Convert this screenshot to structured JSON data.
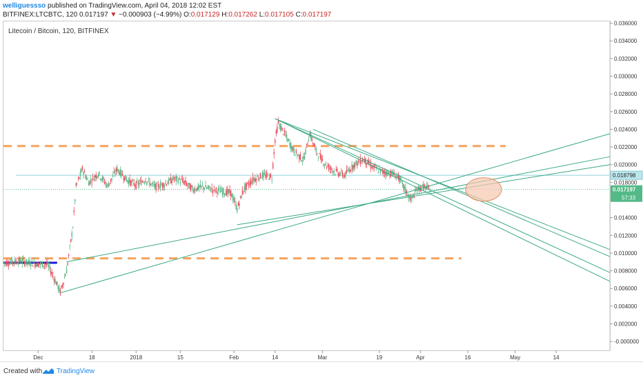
{
  "header": {
    "author": "welliguessso",
    "published": " published on TradingView.com, April 04, 2018 12:02 EST",
    "symbol": "BITFINEX:LTCBTC, 120",
    "last": "0.017197",
    "change_arrow": "▼",
    "change": "−0.000903 (−4.99%)",
    "o_label": "O:",
    "o": "0.017129",
    "h_label": "H:",
    "h": "0.017262",
    "l_label": "L:",
    "l": "0.017105",
    "c_label": "C:",
    "c": "0.017197"
  },
  "pair_title": "Litecoin / Bitcoin, 120, BITFINEX",
  "footer": {
    "created_with": "Created with",
    "brand": "TradingView"
  },
  "colors": {
    "up": "#53b987",
    "down": "#eb4d5c",
    "trendline": "#3aa884",
    "dash": "#f5a25d",
    "blue_line": "#1a1ad6",
    "ellipse_fill": "#f6c7b0",
    "ellipse_stroke": "#e08a62",
    "hline": "#8fd1d9",
    "current": "#53b987",
    "marker": "#bde6ec"
  },
  "chart_data": {
    "type": "candlestick",
    "title": "Litecoin / Bitcoin, 120, BITFINEX",
    "ylim": [
      -0.001,
      0.0362
    ],
    "y_ticks": [
      "0.036000",
      "0.034000",
      "0.032000",
      "0.030000",
      "0.028000",
      "0.026000",
      "0.024000",
      "0.022000",
      "0.020000",
      "0.018000",
      "0.014000",
      "0.012000",
      "0.010000",
      "0.008000",
      "0.006000",
      "0.004000",
      "0.002000",
      "-0.000000"
    ],
    "y_tick_values": [
      0.036,
      0.034,
      0.032,
      0.03,
      0.028,
      0.026,
      0.024,
      0.022,
      0.02,
      0.018,
      0.014,
      0.012,
      0.01,
      0.008,
      0.006,
      0.004,
      0.002,
      0
    ],
    "x_domain": [
      "2017-11-20",
      "2018-05-31"
    ],
    "x_ticks": [
      {
        "label": "Dec",
        "date": "2017-12-01"
      },
      {
        "label": "18",
        "date": "2017-12-18"
      },
      {
        "label": "2018",
        "date": "2018-01-01"
      },
      {
        "label": "15",
        "date": "2018-01-15"
      },
      {
        "label": "Feb",
        "date": "2018-02-01"
      },
      {
        "label": "14",
        "date": "2018-02-14"
      },
      {
        "label": "Mar",
        "date": "2018-03-01"
      },
      {
        "label": "19",
        "date": "2018-03-19"
      },
      {
        "label": "Apr",
        "date": "2018-04-01"
      },
      {
        "label": "16",
        "date": "2018-04-16"
      },
      {
        "label": "May",
        "date": "2018-05-01"
      },
      {
        "label": "14",
        "date": "2018-05-14"
      }
    ],
    "price_path": [
      [
        "2017-11-20",
        0.0089
      ],
      [
        "2017-11-25",
        0.0091
      ],
      [
        "2017-11-30",
        0.0088
      ],
      [
        "2017-12-04",
        0.0087
      ],
      [
        "2017-12-06",
        0.0072
      ],
      [
        "2017-12-08",
        0.0056
      ],
      [
        "2017-12-10",
        0.008
      ],
      [
        "2017-12-12",
        0.013
      ],
      [
        "2017-12-13",
        0.0175
      ],
      [
        "2017-12-15",
        0.0195
      ],
      [
        "2017-12-17",
        0.018
      ],
      [
        "2017-12-20",
        0.019
      ],
      [
        "2017-12-23",
        0.0176
      ],
      [
        "2017-12-26",
        0.0195
      ],
      [
        "2017-12-29",
        0.0183
      ],
      [
        "2018-01-01",
        0.0177
      ],
      [
        "2018-01-04",
        0.0183
      ],
      [
        "2018-01-07",
        0.0175
      ],
      [
        "2018-01-10",
        0.0178
      ],
      [
        "2018-01-13",
        0.0184
      ],
      [
        "2018-01-16",
        0.0181
      ],
      [
        "2018-01-19",
        0.0172
      ],
      [
        "2018-01-22",
        0.0175
      ],
      [
        "2018-01-25",
        0.0172
      ],
      [
        "2018-01-28",
        0.017
      ],
      [
        "2018-01-31",
        0.0168
      ],
      [
        "2018-02-02",
        0.015
      ],
      [
        "2018-02-04",
        0.0172
      ],
      [
        "2018-02-07",
        0.0183
      ],
      [
        "2018-02-10",
        0.0188
      ],
      [
        "2018-02-13",
        0.0186
      ],
      [
        "2018-02-14",
        0.0228
      ],
      [
        "2018-02-15",
        0.0247
      ],
      [
        "2018-02-17",
        0.0235
      ],
      [
        "2018-02-20",
        0.0215
      ],
      [
        "2018-02-23",
        0.0205
      ],
      [
        "2018-02-25",
        0.0235
      ],
      [
        "2018-02-27",
        0.0215
      ],
      [
        "2018-03-02",
        0.02
      ],
      [
        "2018-03-05",
        0.0192
      ],
      [
        "2018-03-08",
        0.0188
      ],
      [
        "2018-03-11",
        0.02
      ],
      [
        "2018-03-14",
        0.0206
      ],
      [
        "2018-03-17",
        0.0197
      ],
      [
        "2018-03-20",
        0.0192
      ],
      [
        "2018-03-23",
        0.019
      ],
      [
        "2018-03-25",
        0.0186
      ],
      [
        "2018-03-27",
        0.0173
      ],
      [
        "2018-03-29",
        0.016
      ],
      [
        "2018-03-31",
        0.0172
      ],
      [
        "2018-04-02",
        0.0175
      ],
      [
        "2018-04-04",
        0.0172
      ]
    ],
    "last_price": 0.017197,
    "last_label": "0.017197",
    "last_countdown": "57:33",
    "hline_price": 0.018798,
    "hline_label": "0.018798",
    "annotations": {
      "dashed_upper": {
        "from": "2017-11-20",
        "to": "2018-04-28",
        "y": 0.0221
      },
      "dashed_lower": {
        "from": "2017-11-20",
        "to": "2018-04-14",
        "y": 0.0094
      },
      "blue_line": {
        "from": "2017-11-20",
        "to": "2017-12-07",
        "y": 0.0089
      },
      "ellipse_center": {
        "date": "2018-04-21",
        "y": 0.0172
      }
    },
    "trendlines": [
      [
        [
          "2018-02-14",
          0.0252
        ],
        [
          "2018-05-31",
          0.0104
        ]
      ],
      [
        [
          "2018-02-14",
          0.0252
        ],
        [
          "2018-05-31",
          0.0078
        ]
      ],
      [
        [
          "2018-02-14",
          0.0252
        ],
        [
          "2018-05-31",
          0.0068
        ]
      ],
      [
        [
          "2018-02-26",
          0.024
        ],
        [
          "2018-05-31",
          0.0096
        ]
      ],
      [
        [
          "2017-12-08",
          0.0055
        ],
        [
          "2018-05-31",
          0.0235
        ]
      ],
      [
        [
          "2017-12-10",
          0.009
        ],
        [
          "2018-05-31",
          0.0209
        ]
      ],
      [
        [
          "2018-02-02",
          0.0132
        ],
        [
          "2018-05-31",
          0.02
        ]
      ]
    ]
  }
}
